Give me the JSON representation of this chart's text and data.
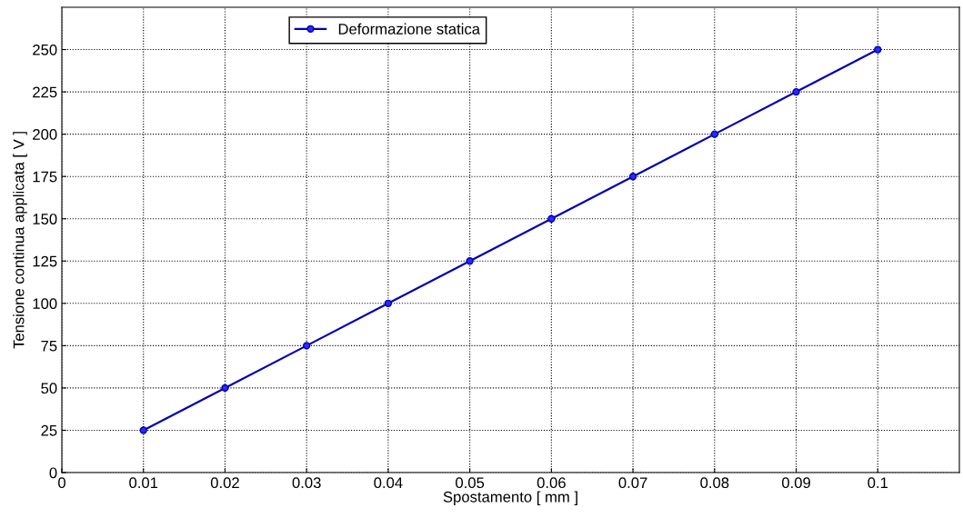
{
  "chart_data": {
    "type": "line",
    "xlabel": "Spostamento [ mm ]",
    "ylabel": "Tensione continua applicata [ V ]",
    "x": [
      0.01,
      0.02,
      0.03,
      0.04,
      0.05,
      0.06,
      0.07,
      0.08,
      0.09,
      0.1
    ],
    "series": [
      {
        "name": "Deformazione statica",
        "color": "#0000b4",
        "values": [
          25,
          50,
          75,
          100,
          125,
          150,
          175,
          200,
          225,
          250
        ]
      }
    ],
    "xlim": [
      0,
      0.11
    ],
    "ylim": [
      0,
      275
    ],
    "xticks": [
      0,
      0.01,
      0.02,
      0.03,
      0.04,
      0.05,
      0.06,
      0.07,
      0.08,
      0.09,
      0.1
    ],
    "yticks": [
      0,
      25,
      50,
      75,
      100,
      125,
      150,
      175,
      200,
      225,
      250
    ],
    "grid": true,
    "legend": "top",
    "marker": "circle",
    "line_style": "solid"
  }
}
